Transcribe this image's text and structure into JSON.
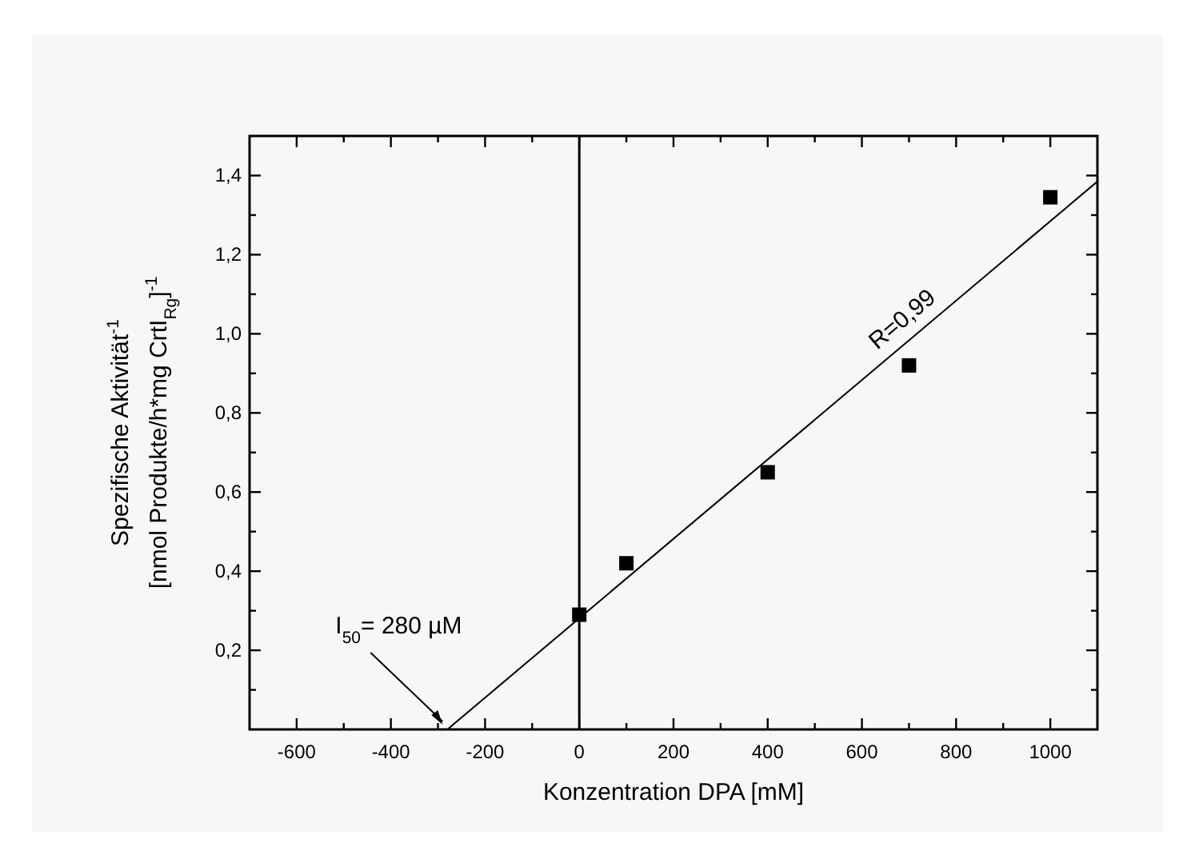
{
  "chart_data": {
    "type": "scatter",
    "xlabel": "Konzentration DPA [mM]",
    "ylabel": "Spezifische Aktivität$^{-1}$\n[nmol Produkte/h*mg CrtI$_{Rg}$]$^{-1}$",
    "marker": "square",
    "series": [
      {
        "color": "#000000",
        "x": [
          0,
          100,
          400,
          700,
          1000
        ],
        "values": [
          0.29,
          0.42,
          0.65,
          0.92,
          1.345
        ]
      },
      {
        "type": "line",
        "color": "#000000",
        "x": [
          -280,
          1100
        ],
        "values": [
          0,
          1.385
        ],
        "marker": "none",
        "line_style": "solid"
      }
    ],
    "ref_lines": [
      {
        "axis": "x",
        "value": 0,
        "color": "#000000",
        "line_style": "solid"
      }
    ],
    "annotations": [
      "R=0,99",
      {
        "text": "I$_{50}$= 280 µM",
        "x": -280,
        "y": 0
      }
    ],
    "xlim": [
      -700,
      1100
    ],
    "ylim": [
      0,
      1.5
    ],
    "xticks": [
      -600,
      {
        "value": -500,
        "label": null
      },
      -400,
      {
        "value": -300,
        "label": null
      },
      -200,
      {
        "value": -100,
        "label": null
      },
      0,
      {
        "value": 100,
        "label": null
      },
      200,
      {
        "value": 300,
        "label": null
      },
      400,
      {
        "value": 500,
        "label": null
      },
      600,
      {
        "value": 700,
        "label": null
      },
      800,
      {
        "value": 900,
        "label": null
      },
      1000
    ],
    "yticks": [
      {
        "value": 0.1,
        "label": null
      },
      {
        "value": 0.2,
        "label": "0,2"
      },
      {
        "value": 0.3,
        "label": null
      },
      {
        "value": 0.4,
        "label": "0,4"
      },
      {
        "value": 0.5,
        "label": null
      },
      {
        "value": 0.6,
        "label": "0,6"
      },
      {
        "value": 0.7,
        "label": null
      },
      {
        "value": 0.8,
        "label": "0,8"
      },
      {
        "value": 0.9,
        "label": null
      },
      {
        "value": 1.0,
        "label": "1,0"
      },
      {
        "value": 1.1,
        "label": null
      },
      {
        "value": 1.2,
        "label": "1,2"
      },
      {
        "value": 1.3,
        "label": null
      },
      {
        "value": 1.4,
        "label": "1,4"
      }
    ],
    "grid": false
  }
}
